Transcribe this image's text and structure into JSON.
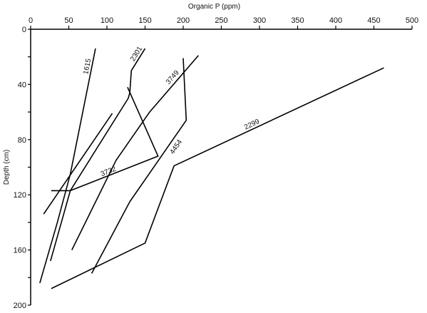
{
  "chart_data": {
    "type": "line",
    "title": "",
    "xlabel": "Organic P (ppm)",
    "ylabel": "Depth (cm)",
    "xlim": [
      0,
      500
    ],
    "ylim": [
      0,
      200
    ],
    "y_inverted": true,
    "x_axis_position": "top",
    "x_ticks": [
      0,
      50,
      100,
      150,
      200,
      250,
      300,
      350,
      400,
      450,
      500
    ],
    "y_ticks": [
      0,
      40,
      80,
      120,
      160,
      200
    ],
    "grid": false,
    "legend": "none (series labelled inline)",
    "series": [
      {
        "name": "1615",
        "x": [
          85,
          52,
          35,
          12
        ],
        "y": [
          14,
          105,
          140,
          184
        ]
      },
      {
        "name": "2301",
        "x": [
          150,
          132,
          130,
          128,
          52,
          26
        ],
        "y": [
          14,
          30,
          46,
          50,
          117,
          168
        ]
      },
      {
        "name": "3749",
        "x": [
          220,
          156,
          112,
          54
        ],
        "y": [
          19,
          60,
          95,
          160
        ]
      },
      {
        "name": "3732",
        "x": [
          127,
          167,
          52,
          27
        ],
        "y": [
          42,
          92,
          117,
          117
        ]
      },
      {
        "name": "4454",
        "x": [
          200,
          204,
          130,
          80
        ],
        "y": [
          21,
          66,
          125,
          177
        ]
      },
      {
        "name": "2299",
        "x": [
          463,
          188,
          150,
          27
        ],
        "y": [
          28,
          99,
          155,
          188
        ]
      },
      {
        "name": "",
        "x": [
          107,
          17
        ],
        "y": [
          61,
          134
        ]
      }
    ]
  }
}
